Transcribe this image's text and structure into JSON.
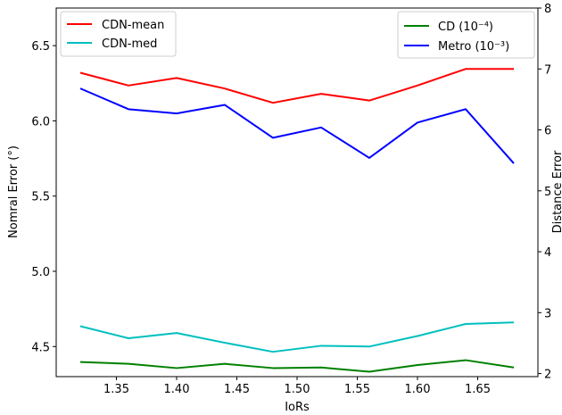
{
  "chart_data": {
    "type": "line",
    "x": [
      1.32,
      1.36,
      1.4,
      1.44,
      1.48,
      1.52,
      1.56,
      1.6,
      1.64,
      1.68
    ],
    "xlabel": "IoRs",
    "xlim": [
      1.3,
      1.7
    ],
    "xticks": [
      "1.35",
      "1.40",
      "1.45",
      "1.50",
      "1.55",
      "1.60",
      "1.65"
    ],
    "ylabel_left": "Nomral Error (°)",
    "ylim_left": [
      4.3,
      6.75
    ],
    "yticks_left": [
      "4.5",
      "5.0",
      "5.5",
      "6.0",
      "6.5"
    ],
    "ylabel_right": "Distance Error",
    "ylim_right": [
      1.95,
      8.0
    ],
    "yticks_right": [
      "2",
      "3",
      "4",
      "5",
      "6",
      "7",
      "8"
    ],
    "grid": false,
    "series": [
      {
        "name": "CDN-mean",
        "axis": "left",
        "color": "#ff0000",
        "values": [
          6.32,
          6.235,
          6.285,
          6.215,
          6.12,
          6.18,
          6.135,
          6.235,
          6.345,
          6.345
        ]
      },
      {
        "name": "CDN-med",
        "axis": "left",
        "color": "#00bfbf",
        "values": [
          4.635,
          4.555,
          4.59,
          4.525,
          4.465,
          4.505,
          4.5,
          4.57,
          4.65,
          4.66
        ]
      },
      {
        "name": "CD (10⁻⁴)",
        "axis": "right",
        "color": "#008000",
        "values": [
          2.19,
          2.16,
          2.09,
          2.16,
          2.09,
          2.1,
          2.03,
          2.14,
          2.22,
          2.1
        ]
      },
      {
        "name": "Metro (10⁻³)",
        "axis": "right",
        "color": "#0000ff",
        "values": [
          6.68,
          6.34,
          6.27,
          6.41,
          5.87,
          6.04,
          5.54,
          6.12,
          6.34,
          5.45
        ]
      }
    ],
    "legend_left": "top-left",
    "legend_right": "top-right"
  }
}
